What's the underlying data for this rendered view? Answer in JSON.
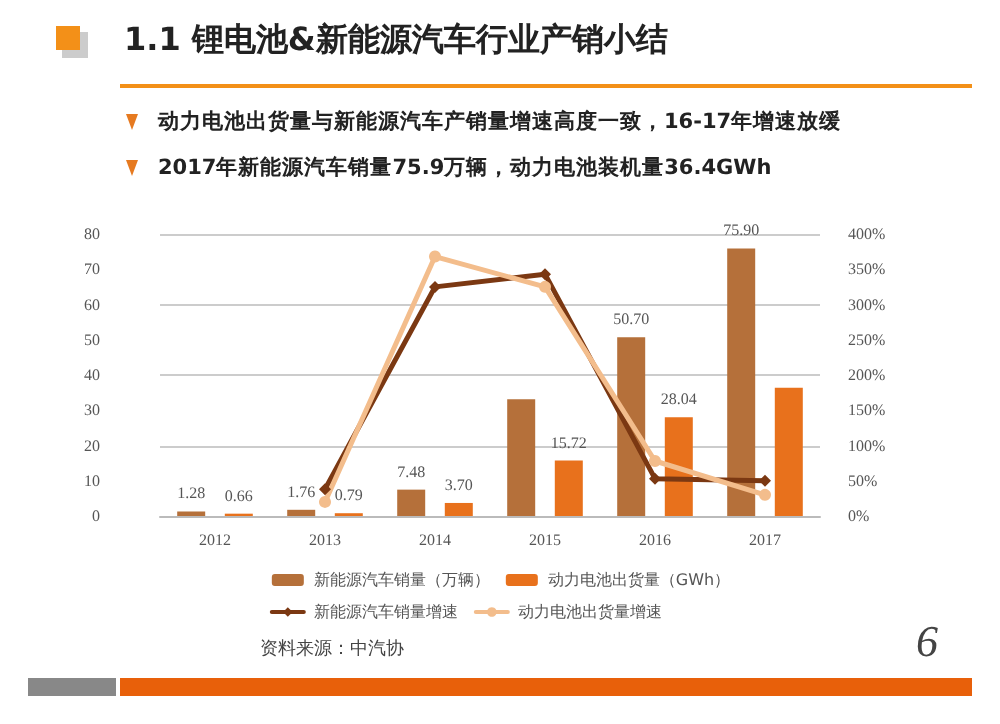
{
  "chart_data": {
    "type": "bar",
    "title": "1.1 锂电池&新能源汽车行业产销小结",
    "subtitle": "动力电池出货量与新能源汽车产销量增速高度一致，16-17年增速放缓",
    "annotations": [
      "2017年新能源汽车销量75.9万辆，动力电池装机量36.4GWh",
      "资料来源：中汽协",
      "6"
    ],
    "categories": [
      "2012",
      "2013",
      "2014",
      "2015",
      "2016",
      "2017"
    ],
    "series": [
      {
        "name": "新能源汽车销量（万辆）",
        "color": "#b5703a",
        "values": [
          1.28,
          1.76,
          7.48,
          33.1,
          50.7,
          75.9
        ],
        "value_labels": [
          "1.28",
          "1.76",
          "7.48",
          null,
          "50.70",
          "75.90"
        ]
      },
      {
        "name": "动力电池出货量（GWh）",
        "color": "#e8711c",
        "values": [
          0.66,
          0.79,
          3.7,
          15.72,
          28.04,
          36.4
        ],
        "value_labels": [
          "0.66",
          "0.79",
          "3.70",
          "15.72",
          "28.04",
          null
        ]
      },
      {
        "name": "新能源汽车销量增速",
        "type": "line",
        "axis": "y2",
        "color": "#7b3812",
        "marker": "diamond",
        "values": [
          null,
          38,
          325,
          343,
          53,
          50
        ]
      },
      {
        "name": "动力电池出货量增速",
        "type": "line",
        "axis": "y2",
        "color": "#f3bd8c",
        "marker": "circle",
        "values": [
          null,
          20,
          368,
          325,
          78,
          30
        ]
      }
    ],
    "ylim": [
      0,
      80
    ],
    "yticks": [
      0,
      10,
      20,
      30,
      40,
      50,
      60,
      70,
      80
    ],
    "y2lim": [
      0,
      400
    ],
    "y2ticks": [
      {
        "value": 0,
        "label": "0%"
      },
      {
        "value": 50,
        "label": "50%"
      },
      {
        "value": 100,
        "label": "100%"
      },
      {
        "value": 150,
        "label": "150%"
      },
      {
        "value": 200,
        "label": "200%"
      },
      {
        "value": 250,
        "label": "250%"
      },
      {
        "value": 300,
        "label": "300%"
      },
      {
        "value": 350,
        "label": "350%"
      },
      {
        "value": 400,
        "label": "400%"
      }
    ],
    "grid": "y",
    "legend": "bottom"
  }
}
